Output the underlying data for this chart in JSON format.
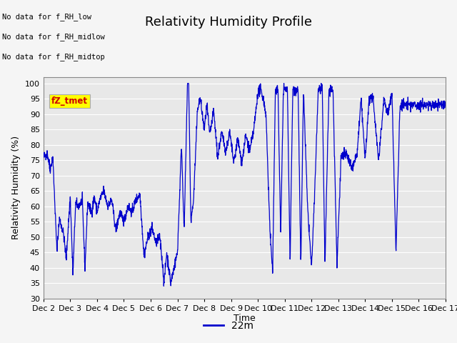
{
  "title": "Relativity Humidity Profile",
  "xlabel": "Time",
  "ylabel": "Relativity Humidity (%)",
  "ylim": [
    30,
    102
  ],
  "yticks": [
    30,
    35,
    40,
    45,
    50,
    55,
    60,
    65,
    70,
    75,
    80,
    85,
    90,
    95,
    100
  ],
  "xtick_labels": [
    "Dec 2",
    "Dec 3",
    "Dec 4",
    "Dec 5",
    "Dec 6",
    "Dec 7",
    "Dec 8",
    "Dec 9",
    "Dec 10",
    "Dec 11",
    "Dec 12",
    "Dec 13",
    "Dec 14",
    "Dec 15",
    "Dec 16",
    "Dec 17"
  ],
  "no_data_labels": [
    "No data for f_RH_low",
    "No data for f_RH_midlow",
    "No data for f_RH_midtop"
  ],
  "legend_label": "22m",
  "legend_color": "#0000cc",
  "line_color": "#0000cc",
  "bg_color": "#e8e8e8",
  "annotation_text": "fZ_tmet",
  "annotation_bg": "#ffff00",
  "annotation_fg": "#cc0000",
  "title_fontsize": 13,
  "axis_fontsize": 9,
  "tick_fontsize": 8
}
